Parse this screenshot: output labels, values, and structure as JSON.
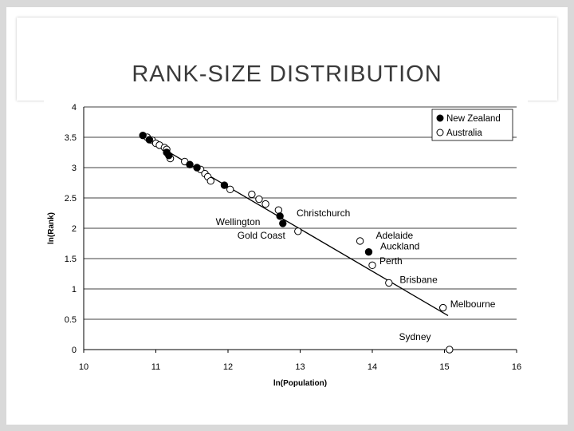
{
  "slide": {
    "title": "RANK-SIZE DISTRIBUTION"
  },
  "colors": {
    "background": "#d9d9d9",
    "filled_marker": "#000000",
    "hollow_marker": "#ffffff",
    "gridline": "#000000",
    "trendline": "#000000"
  },
  "chart_data": {
    "type": "scatter",
    "title": "",
    "xlabel": "ln(Population)",
    "ylabel": "ln(Rank)",
    "xlim": [
      10,
      16
    ],
    "ylim": [
      0,
      4
    ],
    "x_ticks": [
      "10",
      "11",
      "12",
      "13",
      "14",
      "15",
      "16"
    ],
    "y_ticks": [
      "0",
      "0.5",
      "1",
      "1.5",
      "2",
      "2.5",
      "3",
      "3.5",
      "4"
    ],
    "grid": "horizontal",
    "legend_position": "top-right",
    "series": [
      {
        "name": "New Zealand",
        "marker": "filled-circle",
        "points": [
          [
            10.82,
            3.53
          ],
          [
            10.91,
            3.46
          ],
          [
            11.15,
            3.25
          ],
          [
            11.18,
            3.2
          ],
          [
            11.47,
            3.05
          ],
          [
            11.57,
            3.0
          ],
          [
            11.95,
            2.71
          ],
          [
            12.72,
            2.2
          ],
          [
            12.76,
            2.08
          ],
          [
            13.95,
            1.61
          ]
        ]
      },
      {
        "name": "Australia",
        "marker": "hollow-circle",
        "points": [
          [
            10.88,
            3.5
          ],
          [
            10.95,
            3.45
          ],
          [
            11.0,
            3.4
          ],
          [
            11.05,
            3.37
          ],
          [
            11.12,
            3.33
          ],
          [
            11.15,
            3.3
          ],
          [
            11.2,
            3.15
          ],
          [
            11.4,
            3.1
          ],
          [
            11.62,
            2.97
          ],
          [
            11.68,
            2.9
          ],
          [
            11.72,
            2.85
          ],
          [
            11.76,
            2.78
          ],
          [
            12.03,
            2.64
          ],
          [
            12.33,
            2.56
          ],
          [
            12.43,
            2.48
          ],
          [
            12.52,
            2.4
          ],
          [
            12.7,
            2.3
          ],
          [
            12.97,
            1.95
          ],
          [
            13.83,
            1.79
          ],
          [
            14.0,
            1.39
          ],
          [
            14.23,
            1.1
          ],
          [
            14.98,
            0.69
          ],
          [
            15.07,
            0.0
          ]
        ]
      }
    ],
    "trendline": {
      "x": [
        10.8,
        15.05
      ],
      "y": [
        3.52,
        0.56
      ]
    },
    "annotations": [
      {
        "text": "Christchurch",
        "x": 12.95,
        "y": 2.2
      },
      {
        "text": "Wellington",
        "x": 11.83,
        "y": 2.05
      },
      {
        "text": "Gold Coast",
        "x": 12.13,
        "y": 1.83
      },
      {
        "text": "Adelaide",
        "x": 14.05,
        "y": 1.83
      },
      {
        "text": "Auckland",
        "x": 14.11,
        "y": 1.65
      },
      {
        "text": "Perth",
        "x": 14.1,
        "y": 1.41
      },
      {
        "text": "Brisbane",
        "x": 14.38,
        "y": 1.1
      },
      {
        "text": "Melbourne",
        "x": 15.08,
        "y": 0.7
      },
      {
        "text": "Sydney",
        "x": 14.37,
        "y": 0.16
      }
    ]
  }
}
